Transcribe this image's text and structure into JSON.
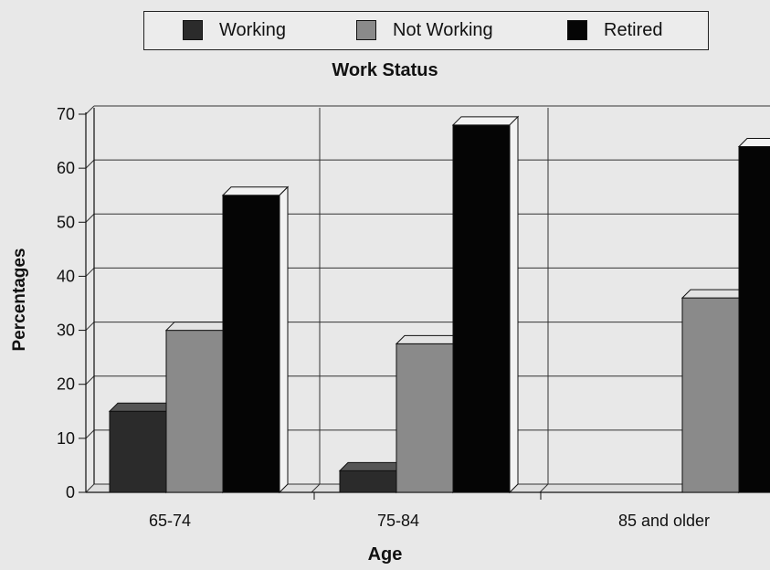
{
  "legend": {
    "items": [
      {
        "label": "Working",
        "color": "#2b2b2b"
      },
      {
        "label": "Not Working",
        "color": "#8a8a8a"
      },
      {
        "label": "Retired",
        "color": "#050505"
      }
    ]
  },
  "chart_data": {
    "type": "bar",
    "title": "Work Status",
    "xlabel": "Age",
    "ylabel": "Percentages",
    "categories": [
      "65-74",
      "75-84",
      "85 and older"
    ],
    "series": [
      {
        "name": "Working",
        "values": [
          15,
          4,
          0
        ],
        "color": "#2b2b2b"
      },
      {
        "name": "Not Working",
        "values": [
          30,
          27.5,
          36
        ],
        "color": "#8a8a8a"
      },
      {
        "name": "Retired",
        "values": [
          55,
          68,
          64
        ],
        "color": "#050505"
      }
    ],
    "ylim": [
      0,
      70
    ],
    "yticks": [
      0,
      10,
      20,
      30,
      40,
      50,
      60,
      70
    ],
    "grid": true,
    "legend_position": "top"
  }
}
